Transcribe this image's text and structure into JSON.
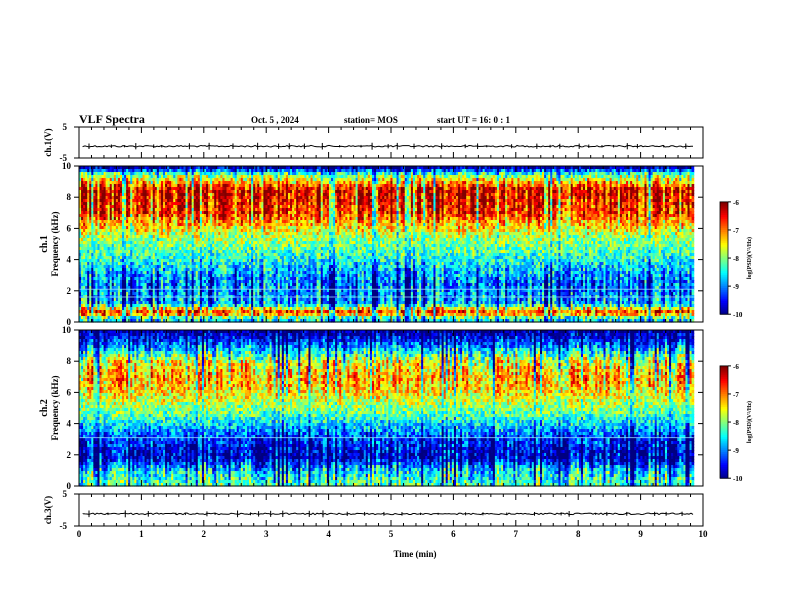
{
  "header": {
    "title": "VLF Spectra",
    "date": "Oct. 5  , 2024",
    "station": "station= MOS",
    "start": "start  UT =   16: 0  : 1"
  },
  "chart_data": [
    {
      "type": "line",
      "name": "ch1-waveform",
      "ylabel": "ch.1(V)",
      "ylim": [
        -5,
        5
      ],
      "yticks": [
        "5",
        "-5"
      ],
      "level": -1.2
    },
    {
      "type": "heatmap",
      "name": "ch1-spectrogram",
      "ylabel_channel": "ch.1",
      "ylabel": "Frequency  (kHz)",
      "ylim": [
        0,
        10
      ],
      "yticks": [
        "0",
        "2",
        "4",
        "6",
        "8",
        "10"
      ],
      "xlim": [
        0,
        10
      ],
      "data_end": 9.85,
      "colorbar": {
        "label": "log(PSD)(V²/Hz)",
        "range": [
          -10,
          -6
        ],
        "ticks": [
          "-6",
          "-7",
          "-8",
          "-9",
          "-10"
        ]
      },
      "intensity_profile": [
        {
          "freq": 0.2,
          "level": -8.5
        },
        {
          "freq": 0.6,
          "level": -6.5
        },
        {
          "freq": 1.2,
          "level": -8.8
        },
        {
          "freq": 2.5,
          "level": -9.0
        },
        {
          "freq": 4.0,
          "level": -8.4
        },
        {
          "freq": 5.5,
          "level": -7.8
        },
        {
          "freq": 7.0,
          "level": -6.6
        },
        {
          "freq": 8.5,
          "level": -6.3
        },
        {
          "freq": 9.5,
          "level": -8.2
        },
        {
          "freq": 9.9,
          "level": -9.8
        }
      ],
      "lines_khz": [
        1.6,
        2.1
      ]
    },
    {
      "type": "heatmap",
      "name": "ch2-spectrogram",
      "ylabel_channel": "ch.2",
      "ylabel": "Frequency  (kHz)",
      "ylim": [
        0,
        10
      ],
      "yticks": [
        "0",
        "2",
        "4",
        "6",
        "8",
        "10"
      ],
      "xlim": [
        0,
        10
      ],
      "data_end": 9.85,
      "colorbar": {
        "label": "log(PSD)(V²/Hz)",
        "range": [
          -10,
          -6
        ],
        "ticks": [
          "-6",
          "-7",
          "-8",
          "-9",
          "-10"
        ]
      },
      "intensity_profile": [
        {
          "freq": 0.3,
          "level": -8.2
        },
        {
          "freq": 1.0,
          "level": -8.6
        },
        {
          "freq": 1.8,
          "level": -9.7
        },
        {
          "freq": 3.0,
          "level": -9.3
        },
        {
          "freq": 4.5,
          "level": -8.2
        },
        {
          "freq": 6.0,
          "level": -7.4
        },
        {
          "freq": 7.0,
          "level": -7.1
        },
        {
          "freq": 8.0,
          "level": -7.6
        },
        {
          "freq": 9.0,
          "level": -9.0
        },
        {
          "freq": 9.9,
          "level": -9.9
        }
      ],
      "lines_khz": [
        3.1
      ]
    },
    {
      "type": "line",
      "name": "ch3-waveform",
      "ylabel": "ch.3(V)",
      "ylim": [
        -5,
        5
      ],
      "yticks": [
        "5",
        "-5"
      ],
      "level": -1.2,
      "xlabel": "Time  (min)",
      "xlim": [
        0,
        10
      ],
      "xticks": [
        "0",
        "1",
        "2",
        "3",
        "4",
        "5",
        "6",
        "7",
        "8",
        "9",
        "10"
      ]
    }
  ]
}
